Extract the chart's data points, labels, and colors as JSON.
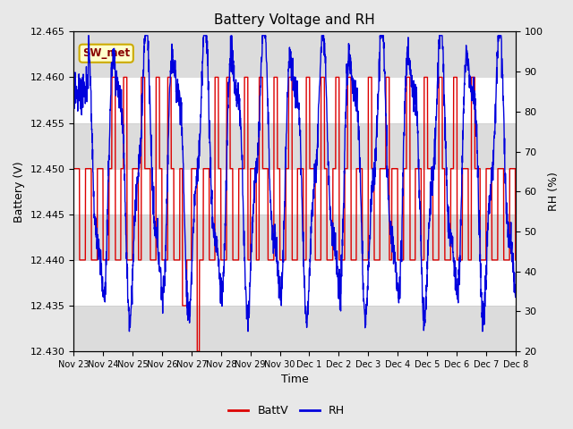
{
  "title": "Battery Voltage and RH",
  "xlabel": "Time",
  "ylabel_left": "Battery (V)",
  "ylabel_right": "RH (%)",
  "annotation": "SW_met",
  "ylim_left": [
    12.43,
    12.465
  ],
  "ylim_right": [
    20,
    100
  ],
  "yticks_left": [
    12.43,
    12.435,
    12.44,
    12.445,
    12.45,
    12.455,
    12.46,
    12.465
  ],
  "yticks_right": [
    20,
    30,
    40,
    50,
    60,
    70,
    80,
    90,
    100
  ],
  "xtick_labels": [
    "Nov 23",
    "Nov 24",
    "Nov 25",
    "Nov 26",
    "Nov 27",
    "Nov 28",
    "Nov 29",
    "Nov 30",
    "Dec 1",
    "Dec 2",
    "Dec 3",
    "Dec 4",
    "Dec 5",
    "Dec 6",
    "Dec 7",
    "Dec 8"
  ],
  "batt_color": "#dd0000",
  "rh_color": "#0000dd",
  "bg_outer": "#e8e8e8",
  "bg_inner": "#ffffff",
  "band_color": "#dcdcdc",
  "legend_labels": [
    "BattV",
    "RH"
  ],
  "grid_color": "#cccccc",
  "annot_facecolor": "#ffffcc",
  "annot_edgecolor": "#ccaa00",
  "annot_textcolor": "#880000"
}
